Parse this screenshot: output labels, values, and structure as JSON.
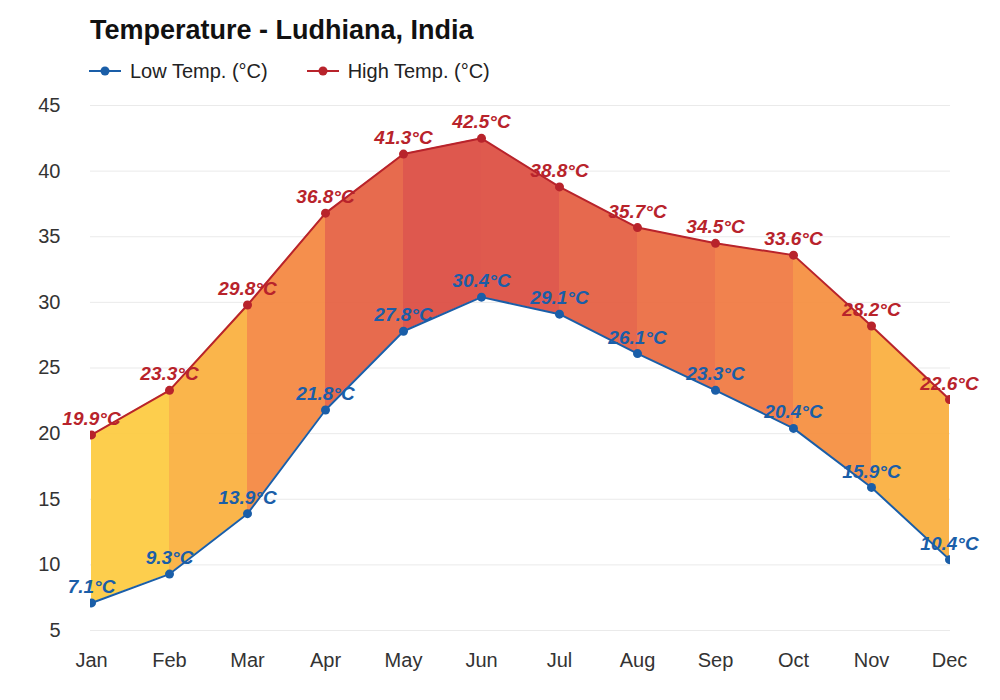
{
  "chart_data": {
    "type": "line",
    "title": "Temperature - Ludhiana, India",
    "categories": [
      "Jan",
      "Feb",
      "Mar",
      "Apr",
      "May",
      "Jun",
      "Jul",
      "Aug",
      "Sep",
      "Oct",
      "Nov",
      "Dec"
    ],
    "series": [
      {
        "name": "Low Temp. (°C)",
        "color": "#1a5ea8",
        "marker": "circle",
        "values": [
          7.1,
          9.3,
          13.9,
          21.8,
          27.8,
          30.4,
          29.1,
          26.1,
          23.3,
          20.4,
          15.9,
          10.4
        ],
        "value_labels": [
          "7.1°C",
          "9.3°C",
          "13.9°C",
          "21.8°C",
          "27.8°C",
          "30.4°C",
          "29.1°C",
          "26.1°C",
          "23.3°C",
          "20.4°C",
          "15.9°C",
          "10.4°C"
        ]
      },
      {
        "name": "High Temp. (°C)",
        "color": "#b8232b",
        "marker": "circle",
        "values": [
          19.9,
          23.3,
          29.8,
          36.8,
          41.3,
          42.5,
          38.8,
          35.7,
          34.5,
          33.6,
          28.2,
          22.6
        ],
        "value_labels": [
          "19.9°C",
          "23.3°C",
          "29.8°C",
          "36.8°C",
          "41.3°C",
          "42.5°C",
          "38.8°C",
          "35.7°C",
          "34.5°C",
          "33.6°C",
          "28.2°C",
          "22.6°C"
        ]
      }
    ],
    "ylim": [
      5,
      45
    ],
    "yticks": [
      5,
      10,
      15,
      20,
      25,
      30,
      35,
      40,
      45
    ],
    "grid": true,
    "legend": "top-left",
    "data_labels": true
  }
}
